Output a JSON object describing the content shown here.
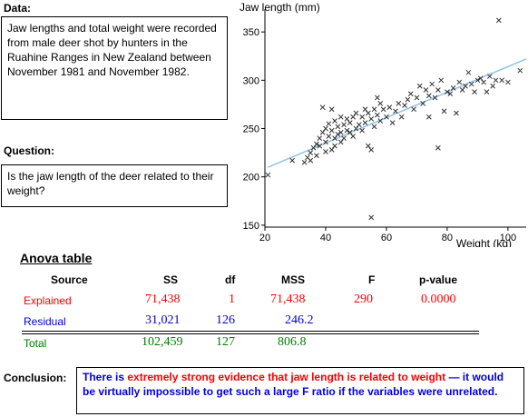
{
  "data_label": "Data:",
  "data_text": "Jaw lengths and total weight were recorded from male deer shot by hunters in the Ruahine Ranges in New Zealand between November 1981 and November 1982.",
  "question_label": "Question:",
  "question_text": "Is the jaw length of the deer related to their weight?",
  "chart_data": {
    "type": "scatter",
    "ylabel": "Jaw length (mm)",
    "xlabel": "Weight (kg)",
    "xlim": [
      20,
      106
    ],
    "ylim": [
      148,
      368
    ],
    "xticks": [
      20,
      40,
      60,
      80,
      100
    ],
    "yticks": [
      150,
      200,
      250,
      300,
      350
    ],
    "grid": false,
    "marker": "x",
    "regression_line": {
      "x": [
        21,
        106
      ],
      "y": [
        210,
        322
      ],
      "color": "#8ec4ea"
    },
    "points": [
      [
        21,
        202
      ],
      [
        29,
        217
      ],
      [
        33,
        215
      ],
      [
        34,
        220
      ],
      [
        35,
        217
      ],
      [
        35,
        225
      ],
      [
        36,
        230
      ],
      [
        37,
        222
      ],
      [
        37,
        234
      ],
      [
        38,
        232
      ],
      [
        38,
        240
      ],
      [
        39,
        246
      ],
      [
        39,
        272
      ],
      [
        40,
        226
      ],
      [
        40,
        236
      ],
      [
        40,
        250
      ],
      [
        41,
        242
      ],
      [
        41,
        255
      ],
      [
        42,
        228
      ],
      [
        42,
        248
      ],
      [
        42,
        270
      ],
      [
        43,
        232
      ],
      [
        43,
        240
      ],
      [
        43,
        258
      ],
      [
        44,
        244
      ],
      [
        44,
        252
      ],
      [
        45,
        236
      ],
      [
        45,
        246
      ],
      [
        45,
        262
      ],
      [
        46,
        240
      ],
      [
        46,
        254
      ],
      [
        47,
        248
      ],
      [
        47,
        260
      ],
      [
        48,
        246
      ],
      [
        48,
        256
      ],
      [
        49,
        242
      ],
      [
        49,
        262
      ],
      [
        50,
        250
      ],
      [
        50,
        266
      ],
      [
        51,
        254
      ],
      [
        52,
        248
      ],
      [
        52,
        262
      ],
      [
        53,
        256
      ],
      [
        53,
        270
      ],
      [
        54,
        232
      ],
      [
        54,
        266
      ],
      [
        55,
        158
      ],
      [
        55,
        228
      ],
      [
        55,
        260
      ],
      [
        56,
        252
      ],
      [
        56,
        270
      ],
      [
        57,
        264
      ],
      [
        57,
        282
      ],
      [
        58,
        258
      ],
      [
        58,
        276
      ],
      [
        59,
        270
      ],
      [
        60,
        262
      ],
      [
        61,
        272
      ],
      [
        62,
        256
      ],
      [
        63,
        268
      ],
      [
        64,
        276
      ],
      [
        65,
        262
      ],
      [
        66,
        274
      ],
      [
        67,
        280
      ],
      [
        68,
        286
      ],
      [
        69,
        270
      ],
      [
        70,
        282
      ],
      [
        71,
        294
      ],
      [
        72,
        276
      ],
      [
        73,
        290
      ],
      [
        74,
        262
      ],
      [
        74,
        284
      ],
      [
        75,
        296
      ],
      [
        76,
        282
      ],
      [
        77,
        230
      ],
      [
        77,
        290
      ],
      [
        78,
        300
      ],
      [
        79,
        268
      ],
      [
        80,
        288
      ],
      [
        81,
        286
      ],
      [
        82,
        292
      ],
      [
        83,
        266
      ],
      [
        84,
        298
      ],
      [
        85,
        290
      ],
      [
        86,
        294
      ],
      [
        87,
        308
      ],
      [
        88,
        296
      ],
      [
        89,
        288
      ],
      [
        90,
        300
      ],
      [
        91,
        302
      ],
      [
        92,
        298
      ],
      [
        93,
        288
      ],
      [
        94,
        304
      ],
      [
        95,
        294
      ],
      [
        96,
        300
      ],
      [
        97,
        362
      ],
      [
        98,
        300
      ],
      [
        100,
        298
      ],
      [
        104,
        310
      ]
    ]
  },
  "anova": {
    "title": "Anova table",
    "headers": {
      "source": "Source",
      "ss": "SS",
      "df": "df",
      "mss": "MSS",
      "f": "F",
      "p": "p-value"
    },
    "explained": {
      "label": "Explained",
      "ss": "71,438",
      "df": "1",
      "mss": "71,438",
      "f": "290",
      "p": "0.0000"
    },
    "residual": {
      "label": "Residual",
      "ss": "31,021",
      "df": "126",
      "mss": "246.2"
    },
    "total": {
      "label": "Total",
      "ss": "102,459",
      "df": "127",
      "mss": "806.8"
    },
    "colors": {
      "explained": "#ff0000",
      "residual": "#0000e0",
      "total": "#008000"
    }
  },
  "conclusion": {
    "label": "Conclusion:",
    "part1": "There is ",
    "part2": "extremely strong evidence that jaw length is related to weight",
    "part3": " — it would be virtually impossible to get such a large F ratio if the variables were unrelated."
  }
}
